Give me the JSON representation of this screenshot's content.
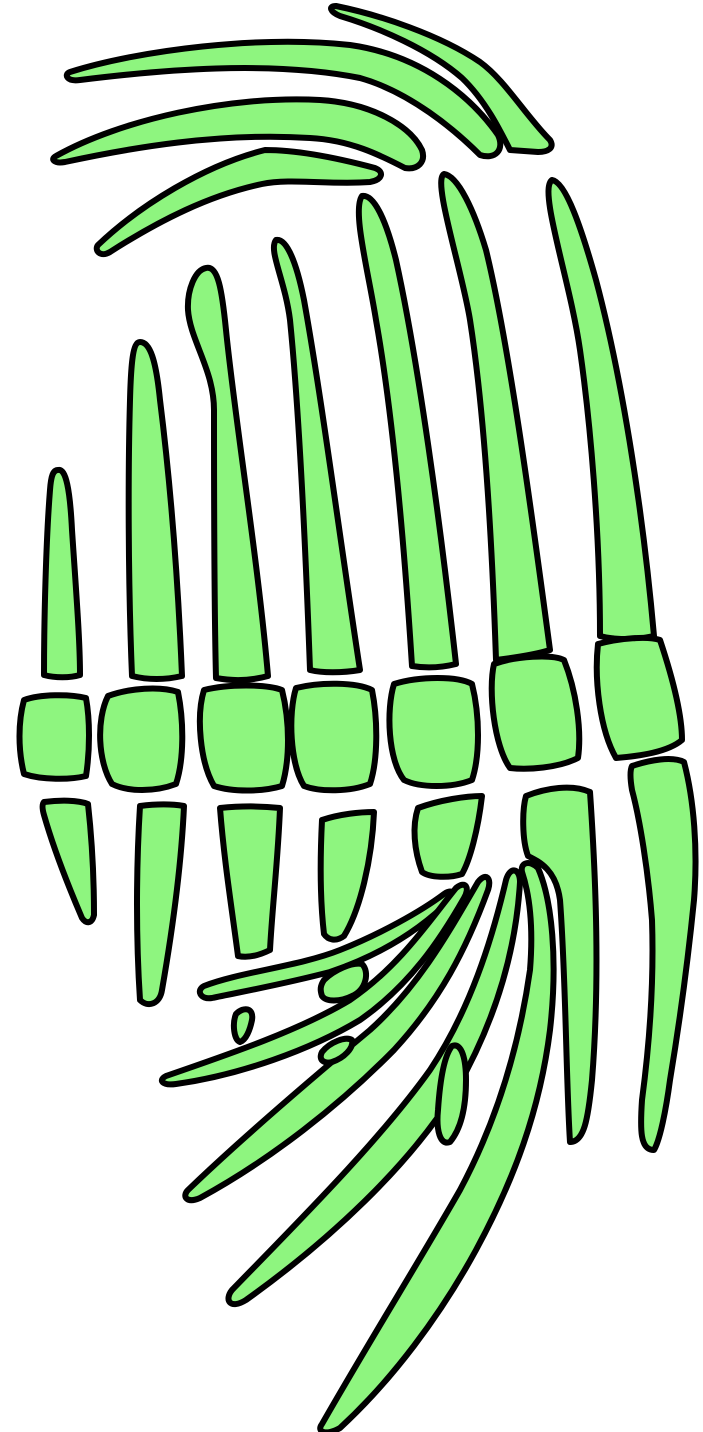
{
  "colors": {
    "bone_fill": "#8ef57f",
    "outline": "#000000",
    "background": "#ffffff"
  }
}
